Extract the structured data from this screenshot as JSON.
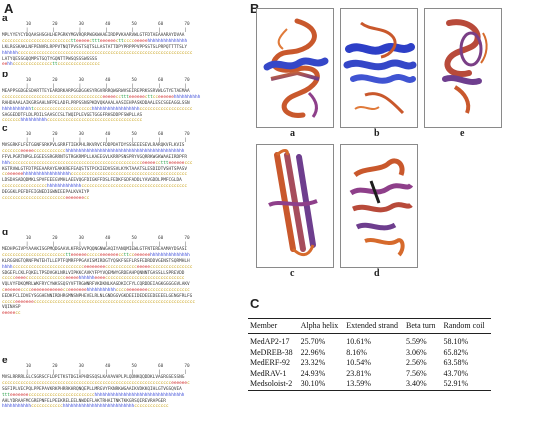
{
  "panels": {
    "A": "A",
    "B": "B",
    "C": "C"
  },
  "sequences": [
    {
      "label": "a",
      "ruler": "         10        20        30        40        50        60        70",
      "ticks": "         |         |         |         |         |         |         |",
      "lines": [
        {
          "seq": "MPLYYEYCYDQAASHSGHLHEPGRKYMGVRQRPWGKWAAEIRDPVKAARVWLGTFDTAEAAARAYDVAA",
          "ss": "cccccccccccccccccccccccccctteeeeecttteeeeeecttcccceeeeehhhhhhhhhhhhhhh"
        },
        {
          "seq": "LKLRGSKAKLNFPENVRLRPPVTNQTPVSSTSQTSLLASTATTDPYPRPPPVPPSSTSLPRPQTTTTSLY",
          "ss": "hhhhhhcccccccccccccccccccccccccccccccccccccccccccccccccccccccccccccccccc"
        },
        {
          "seq": "LATYQESSGQQMPSTGQTYGQNTTPWSQSSSWSSSS",
          "ss": "eehhcccccccccccccccttcccccccccccccccc"
        }
      ]
    },
    {
      "label": "b",
      "ruler": "         10        20        30        40        50        60        70",
      "ticks": "         |         |         |         |         |         |         |",
      "lines": [
        {
          "seq": "MEAPPSGDGESDARTTEYEARDRKARPGGDGGKSYRGVRRRQWGRWVSEIREPRKSSRVWLGTYETAEMAA",
          "ss": "cccccccccccccccccccccccccccccccccccccceeeeeccttteeeeeecttcceeeeeehhhhhhhhhh"
        },
        {
          "seq": "RAHDAAALAIKGRSAHLNFPELADFLPRPSSNSPKDVQKAAALAASIEHPASKDDAALESCSGEAGGLSSN",
          "ss": "hhhhhhhhhhhtcccccccccccccccccccccchhhhhhhhhhhhhhhhhhcccccccccccccccccccc"
        },
        {
          "seq": "SAGGEDDTFLDLPDILSAASCCSLTWQIPLEVGETGGGFRHSDDPFSWPLLAS",
          "ss": "ccccccchhhhhhhhhhcccccccccccccccccccccccccccccccccccc"
        }
      ]
    },
    {
      "label": "c",
      "ruler": "         10        20        30        40        50        60        70",
      "ticks": "         |         |         |         |         |         |         |",
      "lines": [
        {
          "seq": "MVSGRKFLFGTGGNFSRKPVLGRRFTIEKPHLRKVRVCFDDPDATDYSSSEEESEVLRARQKVFLKVIS",
          "ss": "ccccccceeeeecccccccccccchhhhhhhhhhhhhhhhhhhhhhhhhhhhhhhhhhhhhhhhhhhhh"
        },
        {
          "seq": "FFVLPGRTNPGLEGEESSRGRRNTGTRGKRMPLLKAEEGVLKRRPSNSPRYVGQRRKWGKWAAEIRDPFR",
          "ss": "hhhcccccccccccccccccccccccccccccccccccccccccccccccccceeeeeccttteeeeeeccc"
        },
        {
          "seq": "KGTRVWLGTFDTPEEAARAYEAKKREFEAQSTSTPCKIEDVSSVLKYKTAAATSLESDIDTVSHTSPASV",
          "ss": "cceeeeeehhhhhhhhhhhhhhhhhhcccccccccccccccccccccccccccccccccccccccccccc"
        },
        {
          "seq": "LDSDASADQDMKLSPVFEEEGVMHLAEEVQGFDIGKFFDSLFEDKFGDFADDLYAVGDDLPMFCGLDA",
          "ss": "ccccccccccccccccchhhhhhhhhhhhhcccccccccccccccccccccccccccccccccccccccc"
        },
        {
          "seq": "DEGGKLPEFDFEIGNEDIGWNIEEPALKVAIYP",
          "ss": "cccccccccccccccccccccccceeeeeeecc"
        }
      ]
    },
    {
      "label": "d",
      "ruler": "         10        20        30        40        50        60        70",
      "ticks": "         |         |         |         |         |         |         |",
      "lines": [
        {
          "seq": "MEDHPGIVPYAAAKISGPMQDGAAVLKFRGVVPQQNGNWGAQIYANQMIEWLGTFNTEREAAMAYDSASI",
          "ss": "cccccccccccccccccccccccctteeeeeeccccceeeeeeeccttcceeeeeehhhhhhhhhhhhhhh"
        },
        {
          "seq": "KLRGGNGTQRNFPWTEHTLLEPTFQMRFPPGAVISMIRDGTYQSKFSEFLRSFEDRDDVGENSTSQRMHLH",
          "ss": "hhhhccccccccccccccccccccccccccceeeeeeeecccccccccccceeeeecccccccccccccccc"
        },
        {
          "seq": "SDGEFLCKLFQKELTPSDVGKLNRLVIPKKCAVKYFPYVQEMWYGRDEAHPQNNNTGASSLLSPREVDD",
          "ss": "ccccceeeeccccccccccccccceeeeehhhhhheeeecccccccccccccccccccccccccccccc"
        },
        {
          "seq": "VQLVYFDKQMRLWKFRYCYWKSSQSYVFTRGWNRFVKDKNLKAGDKICFYLCQRDDEIAGKGGGGGVLAKV",
          "ss": "ceeeeeecccceeeeeeeeeeeecceeeeeeehhhhhhhhhhhcccceeeeeeeecccccccccccccccc"
        },
        {
          "seq": "EEDKFCLIDVEYSGGHENNIRDHRGMNSNPHEVELRLNLGNDGGVGKDEEIDEDEEEDEEEELGENGFRLFG",
          "ss": "ccccceeeeeeeccccccccccccccccccccccccccccccccccccccccccccccccccccccccccccc"
        },
        {
          "seq": "VQINASP",
          "ss": "eeeeecc"
        }
      ]
    },
    {
      "label": "e",
      "ruler": "         10        20        30        40        50        60        70",
      "ticks": "         |         |         |         |         |         |         |",
      "lines": [
        {
          "seq": "MVSLRRRRLGLCSGRSCFLDPITKSTDGIAPHDSSQSLKAVAVHPLPLQDNKQQDDKLVAGRGSESSNG",
          "ss": "cccccccccccccccccccccccccccccccccccccccccccccccccccccccccccccccceeeeeec"
        },
        {
          "seq": "SGFIPLVECPQLPPEPAVKRKPHRRKHRQNQEPLLMRGVYFKNRKWGAAIKVDKKQIHLGTVGSQVEA",
          "ss": "ttteeeeeeeccccccccccccccccccccccccchhhhhhhhhhhhhhhhhhhhhhhhhhhhhhhhhh"
        },
        {
          "seq": "AHLYDRAAFMCGREPNFELPEEKRELEELNWDEFLAKTRHAITNKTKKGRSQIREVRAPGER",
          "ss": "hhhhhhhhhhhcccccccccccchhhhhhhhhhhhhhhhhhhhhhhhhhhccccccccccccc"
        }
      ]
    }
  ],
  "structures": [
    {
      "label": "a"
    },
    {
      "label": "b"
    },
    {
      "label": "e"
    },
    {
      "label": "c"
    },
    {
      "label": "d"
    }
  ],
  "colors": {
    "helix": "#2e3fd6",
    "strand": "#d12a2a",
    "coil": "#c8a21a",
    "turn": "#2aa04a",
    "ribbon": "#c0522b"
  },
  "table": {
    "headers": [
      "Member",
      "Alpha helix",
      "Extended strand",
      "Beta turn",
      "Random coil"
    ],
    "rows": [
      [
        "MedAP2-17",
        "25.70%",
        "10.61%",
        "5.59%",
        "58.10%"
      ],
      [
        "MeDREB-38",
        "22.96%",
        "8.16%",
        "3.06%",
        "65.82%"
      ],
      [
        "MedERF-92",
        "23.32%",
        "10.54%",
        "2.56%",
        "63.58%"
      ],
      [
        "MedRAV-1",
        "24.93%",
        "23.81%",
        "7.56%",
        "43.70%"
      ],
      [
        "Medsoloist-2",
        "30.10%",
        "13.59%",
        "3.40%",
        "52.91%"
      ]
    ]
  }
}
